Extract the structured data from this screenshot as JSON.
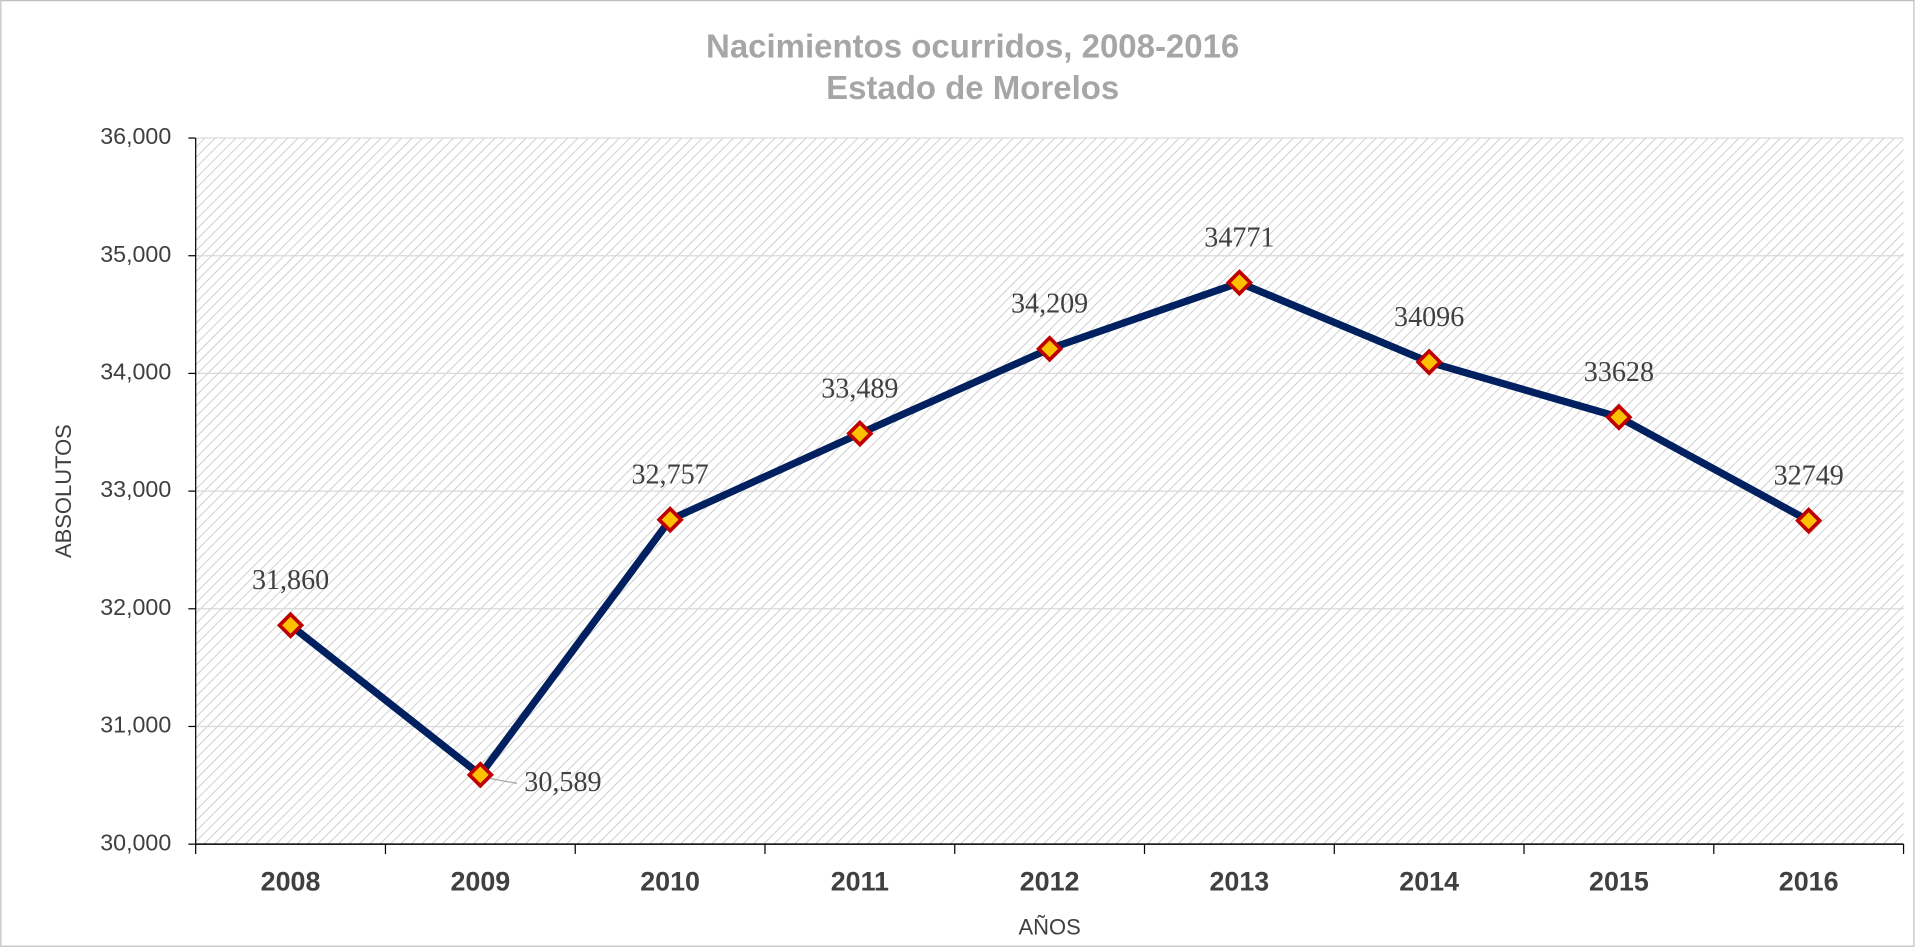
{
  "chart_data": {
    "type": "line",
    "title": "Nacimientos ocurridos, 2008-2016",
    "subtitle": "Estado de Morelos",
    "x_label": "AÑOS",
    "y_label": "ABSOLUTOS",
    "categories": [
      "2008",
      "2009",
      "2010",
      "2011",
      "2012",
      "2013",
      "2014",
      "2015",
      "2016"
    ],
    "series": [
      {
        "name": "Nacimientos",
        "color": "#002060",
        "marker_color": "#ffc000",
        "marker_edge": "#c00000",
        "values": [
          31860,
          30589,
          32757,
          33489,
          34209,
          34771,
          34096,
          33628,
          32749
        ],
        "value_labels": [
          "31,860",
          "30,589",
          "32,757",
          "33,489",
          "34,209",
          "34771",
          "34096",
          "33628",
          "32749"
        ]
      }
    ],
    "ylim": [
      30000,
      36000
    ],
    "yticks": [
      {
        "value": 30000,
        "label": "30,000"
      },
      {
        "value": 31000,
        "label": "31,000"
      },
      {
        "value": 32000,
        "label": "32,000"
      },
      {
        "value": 33000,
        "label": "33,000"
      },
      {
        "value": 34000,
        "label": "34,000"
      },
      {
        "value": 35000,
        "label": "35,000"
      },
      {
        "value": 36000,
        "label": "36,000"
      }
    ],
    "grid": true
  }
}
